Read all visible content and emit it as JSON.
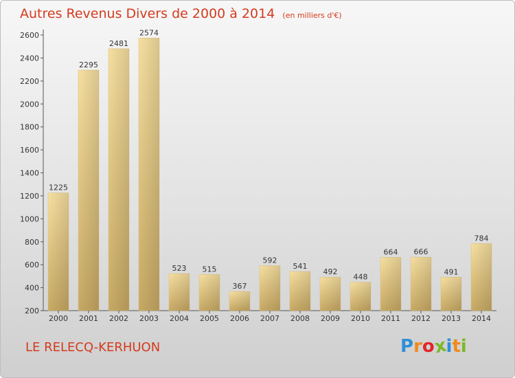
{
  "chart_data": {
    "type": "bar",
    "title": "Autres Revenus Divers de 2000 à 2014",
    "subtitle": "(en milliers d'€)",
    "categories": [
      "2000",
      "2001",
      "2002",
      "2003",
      "2004",
      "2005",
      "2006",
      "2007",
      "2008",
      "2009",
      "2010",
      "2011",
      "2012",
      "2013",
      "2014"
    ],
    "values": [
      1225,
      2295,
      2481,
      2574,
      523,
      515,
      367,
      592,
      541,
      492,
      448,
      664,
      666,
      491,
      784
    ],
    "ylim": [
      200,
      2600
    ],
    "yticks": [
      200,
      400,
      600,
      800,
      1000,
      1200,
      1400,
      1600,
      1800,
      2000,
      2200,
      2400,
      2600
    ],
    "grid": false,
    "bar_color": "#e8c97a"
  },
  "commune": "LE RELECQ-KERHUON",
  "logo": {
    "letters": [
      "P",
      "r",
      "o",
      "x",
      "i",
      "t",
      "i"
    ],
    "colors": [
      "#2f8fd8",
      "#f08a1c",
      "#e2262b",
      "#7ab929",
      "#2f8fd8",
      "#f08a1c",
      "#7ab929"
    ]
  }
}
